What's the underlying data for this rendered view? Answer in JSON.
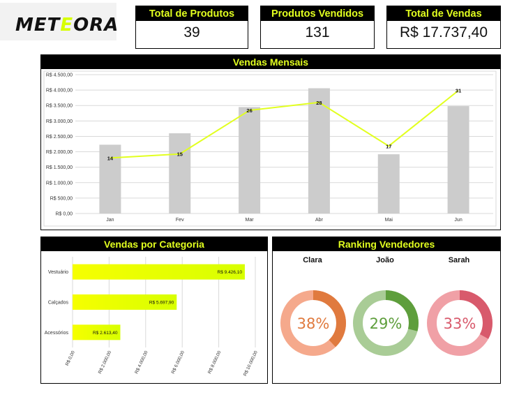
{
  "logo": {
    "text_before": "MET",
    "text_highlight": "E",
    "text_after": "ORA"
  },
  "kpis": [
    {
      "label": "Total de Produtos",
      "value": "39"
    },
    {
      "label": "Produtos Vendidos",
      "value": "131"
    },
    {
      "label": "Total de Vendas",
      "value": "R$ 17.737,40"
    }
  ],
  "colors": {
    "accent": "#e2ff1f",
    "header_bg": "#000000",
    "bar_gray": "#cccccc"
  },
  "chart_data": [
    {
      "type": "bar",
      "title": "Vendas Mensais",
      "categories": [
        "Jan",
        "Fev",
        "Mar",
        "Abr",
        "Mai",
        "Jun"
      ],
      "series": [
        {
          "type": "bar",
          "values": [
            2230,
            2600,
            3450,
            4060,
            1920,
            3480
          ]
        },
        {
          "type": "line",
          "values": [
            14,
            15,
            26,
            28,
            17,
            31
          ],
          "labels": [
            "14",
            "15",
            "26",
            "28",
            "17",
            "31"
          ]
        }
      ],
      "ylim": [
        0,
        4500
      ],
      "y_ticks": [
        "R$ 0,00",
        "R$ 500,00",
        "R$ 1.000,00",
        "R$ 1.500,00",
        "R$ 2.000,00",
        "R$ 2.500,00",
        "R$ 3.000,00",
        "R$ 3.500,00",
        "R$ 4.000,00",
        "R$ 4.500,00"
      ],
      "y_tick_values": [
        0,
        500,
        1000,
        1500,
        2000,
        2500,
        3000,
        3500,
        4000,
        4500
      ],
      "line_ylim": [
        0,
        35
      ],
      "grid": true
    },
    {
      "type": "bar",
      "orientation": "horizontal",
      "title": "Vendas por Categoria",
      "categories": [
        "Vestuário",
        "Calçados",
        "Acessórios"
      ],
      "values": [
        9426.1,
        5697.9,
        2613.4
      ],
      "value_labels": [
        "R$ 9.426,10",
        "R$ 5.697,90",
        "R$ 2.613,40"
      ],
      "xlim": [
        0,
        10000
      ],
      "x_ticks": [
        "R$ 0,00",
        "R$ 2.000,00",
        "R$ 4.000,00",
        "R$ 6.000,00",
        "R$ 8.000,00",
        "R$ 10.000,00"
      ],
      "x_tick_values": [
        0,
        2000,
        4000,
        6000,
        8000,
        10000
      ],
      "grid": true
    },
    {
      "type": "pie",
      "style": "donut",
      "title": "Ranking Vendedores",
      "items": [
        {
          "name": "Clara",
          "percent": 38,
          "label": "38%",
          "color": "#e07a3e",
          "rest_color": "#f5a98c"
        },
        {
          "name": "João",
          "percent": 29,
          "label": "29%",
          "color": "#5e9e3c",
          "rest_color": "#a9cc96"
        },
        {
          "name": "Sarah",
          "percent": 33,
          "label": "33%",
          "color": "#d85a6c",
          "rest_color": "#f0a0a6"
        }
      ]
    }
  ]
}
